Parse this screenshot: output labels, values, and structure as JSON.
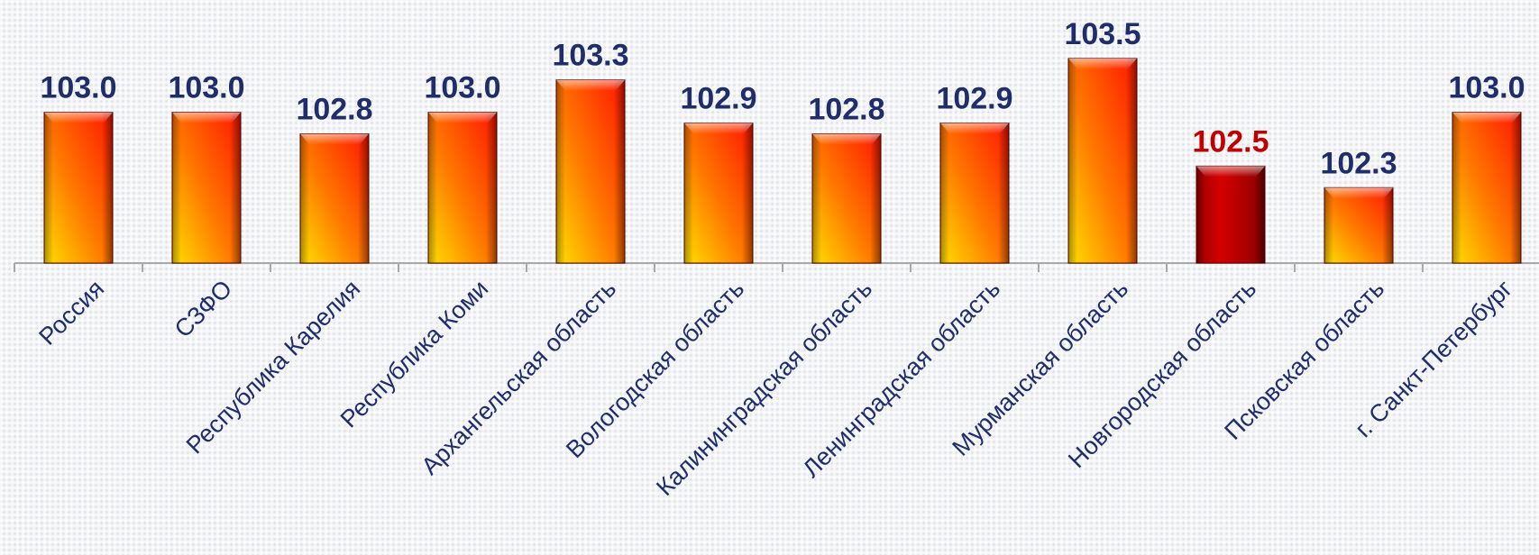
{
  "chart_data": {
    "type": "bar",
    "categories": [
      "Россия",
      "СЗФО",
      "Республика Карелия",
      "Республика Коми",
      "Архангельская область",
      "Вологодская область",
      "Калининградская область",
      "Ленинградская область",
      "Мурманская область",
      "Новгородская область",
      "Псковская область",
      "г. Санкт-Петербург"
    ],
    "values": [
      103.0,
      103.0,
      102.8,
      103.0,
      103.3,
      102.9,
      102.8,
      102.9,
      103.5,
      102.5,
      102.3,
      103.0
    ],
    "value_labels": [
      "103.0",
      "103.0",
      "102.8",
      "103.0",
      "103.3",
      "102.9",
      "102.8",
      "102.9",
      "103.5",
      "102.5",
      "102.3",
      "103.0"
    ],
    "highlighted_category": "Новгородская область",
    "ylim": [
      101.6,
      103.54
    ],
    "grid": false,
    "legend": "none",
    "title": "",
    "xlabel": "",
    "ylabel": ""
  },
  "colors": {
    "label_default": "#1f2d6b",
    "label_highlight": "#c00000",
    "bar_gradient_start": "#ffe000",
    "bar_gradient_mid": "#ff7a00",
    "bar_gradient_end": "#ff1500",
    "bar_highlight_fill": "#cc0000",
    "bar_edge": "#5a0000",
    "axis": "#a9a9a9"
  }
}
